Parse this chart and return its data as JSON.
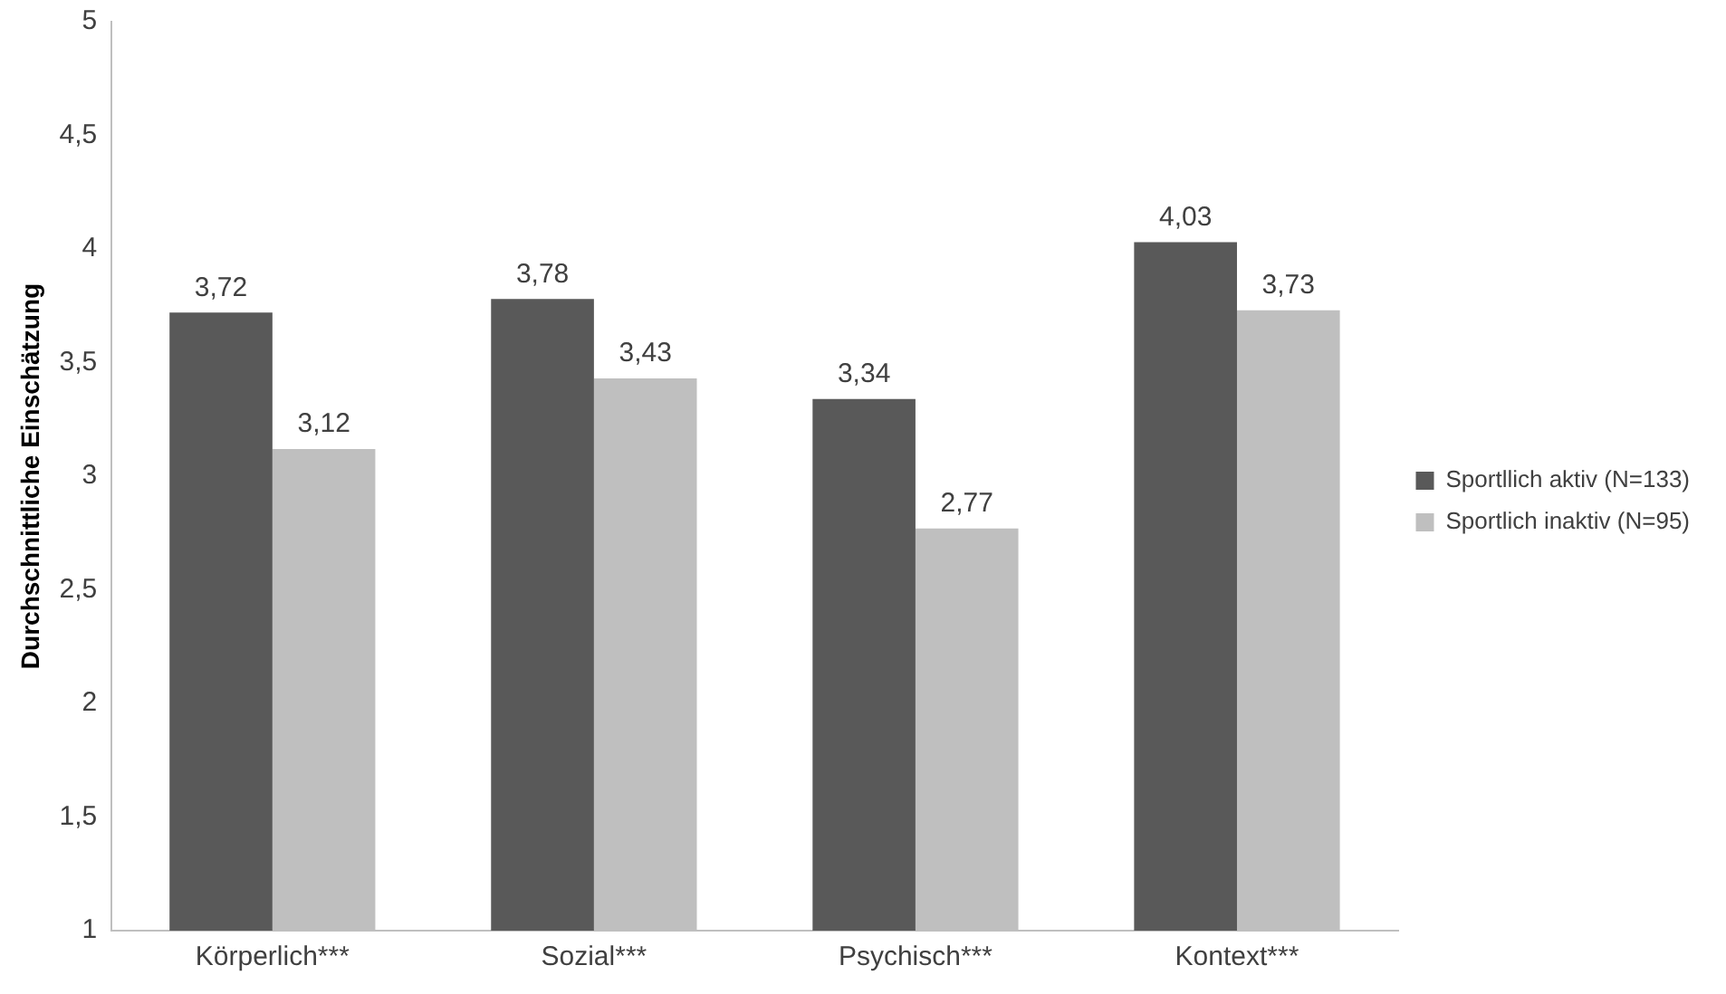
{
  "chart_data": {
    "type": "bar",
    "ylabel": "Durchschnittliche Einschätzung",
    "categories": [
      "Körperlich***",
      "Sozial***",
      "Psychisch***",
      "Kontext***"
    ],
    "series": [
      {
        "name": "Sportllich aktiv (N=133)",
        "color": "#595959",
        "values": [
          3.72,
          3.78,
          3.34,
          4.03
        ],
        "value_labels": [
          "3,72",
          "3,78",
          "3,34",
          "4,03"
        ]
      },
      {
        "name": "Sportlich inaktiv (N=95)",
        "color": "#bfbfbf",
        "values": [
          3.12,
          3.43,
          2.77,
          3.73
        ],
        "value_labels": [
          "3,12",
          "3,43",
          "2,77",
          "3,73"
        ]
      }
    ],
    "ylim": [
      1,
      5
    ],
    "yticks": [
      1,
      {
        "value": 1.5,
        "label": "1,5"
      },
      2,
      {
        "value": 2.5,
        "label": "2,5"
      },
      3,
      {
        "value": 3.5,
        "label": "3,5"
      },
      4,
      {
        "value": 4.5,
        "label": "4,5"
      },
      5
    ],
    "grid": false,
    "legend": "right"
  }
}
